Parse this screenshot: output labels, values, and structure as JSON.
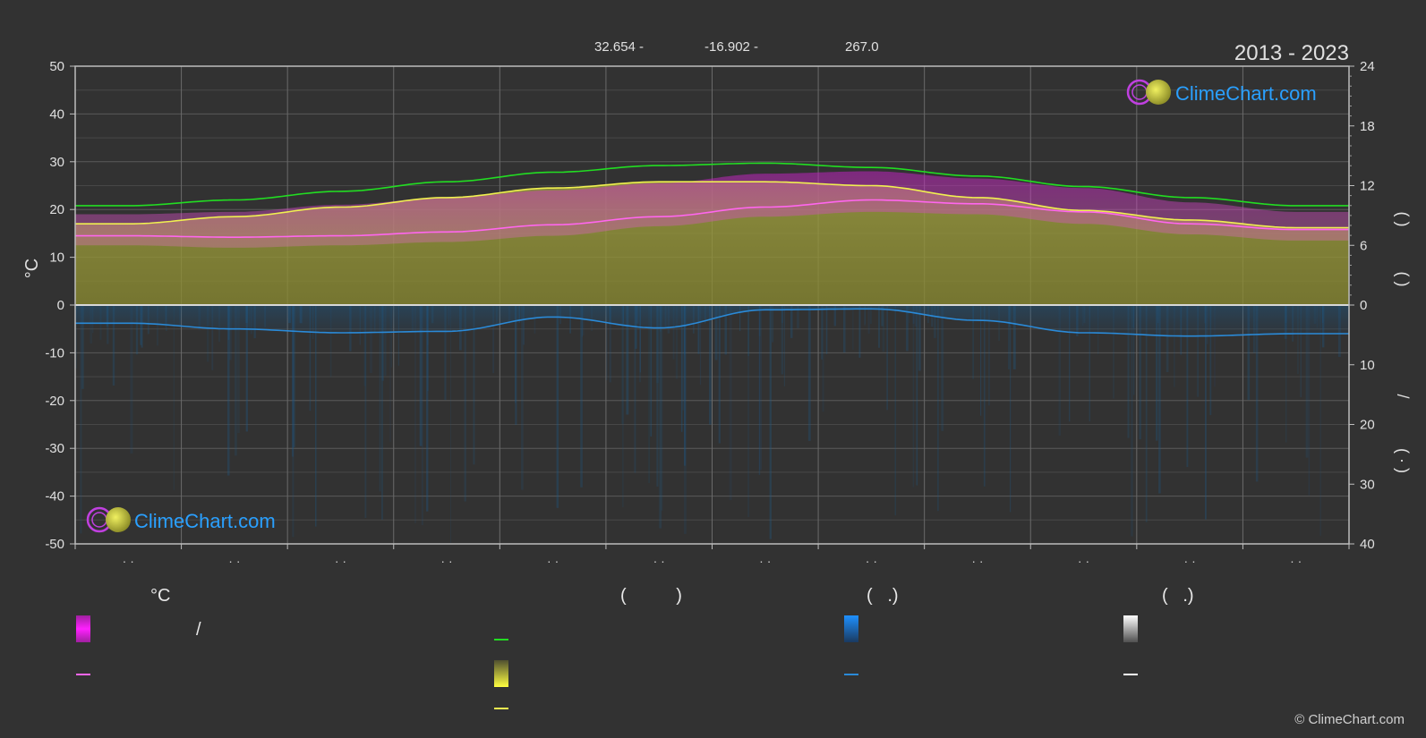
{
  "header": {
    "coord_lat": "32.654 -",
    "coord_lon": "-16.902 -",
    "elevation": "267.0",
    "period": "2013 - 2023"
  },
  "logo": {
    "text": "ClimeChart.com"
  },
  "copyright": "© ClimeChart.com",
  "chart_data": {
    "type": "area",
    "title": "",
    "ylabel_left": "°C",
    "ylim_left": [
      -50,
      50
    ],
    "yticks_left": [
      "50",
      "40",
      "30",
      "20",
      "10",
      "0",
      "-10",
      "-20",
      "-30",
      "-40",
      "-50"
    ],
    "yticks_right_top": [
      "24",
      "18",
      "12",
      "6",
      "0"
    ],
    "yticks_right_bottom": [
      "10",
      "20",
      "30",
      "40"
    ],
    "right_axis_labels": [
      "(   )",
      "(   )",
      "/",
      "(   ·   )"
    ],
    "month_tick_labels": [
      "· ·",
      "· ·",
      "· ·",
      "· ·",
      "· ·",
      "· ·",
      "· ·",
      "· ·",
      "· ·",
      "· ·",
      "· ·",
      "· ·"
    ],
    "x_months": [
      1,
      2,
      3,
      4,
      5,
      6,
      7,
      8,
      9,
      10,
      11,
      12
    ],
    "grid": true,
    "series": [
      {
        "values": [
          20.8,
          22.0,
          23.8,
          25.8,
          27.8,
          29.2,
          29.7,
          28.8,
          27.0,
          24.8,
          22.5,
          20.8
        ],
        "color": "#22dd22"
      },
      {
        "values": [
          17.0,
          18.5,
          20.5,
          22.5,
          24.5,
          25.8,
          25.8,
          25.0,
          22.5,
          19.8,
          17.8,
          16.2
        ],
        "color": "#f0f050"
      },
      {
        "values": [
          14.5,
          14.2,
          14.5,
          15.3,
          16.8,
          18.5,
          20.5,
          22.0,
          21.2,
          19.5,
          17.0,
          15.8
        ],
        "color": "#ff66ee"
      },
      {
        "values": [
          -3.8,
          -5.0,
          -5.8,
          -5.5,
          -2.5,
          -4.8,
          -1.0,
          -0.8,
          -3.2,
          -5.8,
          -6.5,
          -6.0
        ],
        "color": "#2a8ad8"
      }
    ],
    "daily_max_temp": [
      19.0,
      19.5,
      21.0,
      22.5,
      24.0,
      25.5,
      27.5,
      28.0,
      26.5,
      24.5,
      21.5,
      19.5
    ],
    "daily_min_temp": [
      12.5,
      12.0,
      12.5,
      13.2,
      14.5,
      16.5,
      18.5,
      19.5,
      19.0,
      17.0,
      14.8,
      13.5
    ],
    "sunshine_band_top": [
      17.0,
      18.5,
      20.5,
      22.5,
      24.5,
      25.8,
      25.8,
      25.0,
      22.5,
      19.8,
      17.8,
      16.2
    ]
  },
  "legend": {
    "col1_header": "°C",
    "col1_slash": "/",
    "col2_header": "(          )",
    "col3_header": "(   .)",
    "col4_header": "(   .)",
    "colors": {
      "temp_range": "#e020e0",
      "temp_mean": "#ff66ee",
      "daylight": "#22dd22",
      "sunshine": "#e8e840",
      "sunshine_line": "#f0f050",
      "precip": "#1e7fd0",
      "precip_line": "#2a8ad8",
      "snow": "#ffffff"
    }
  }
}
